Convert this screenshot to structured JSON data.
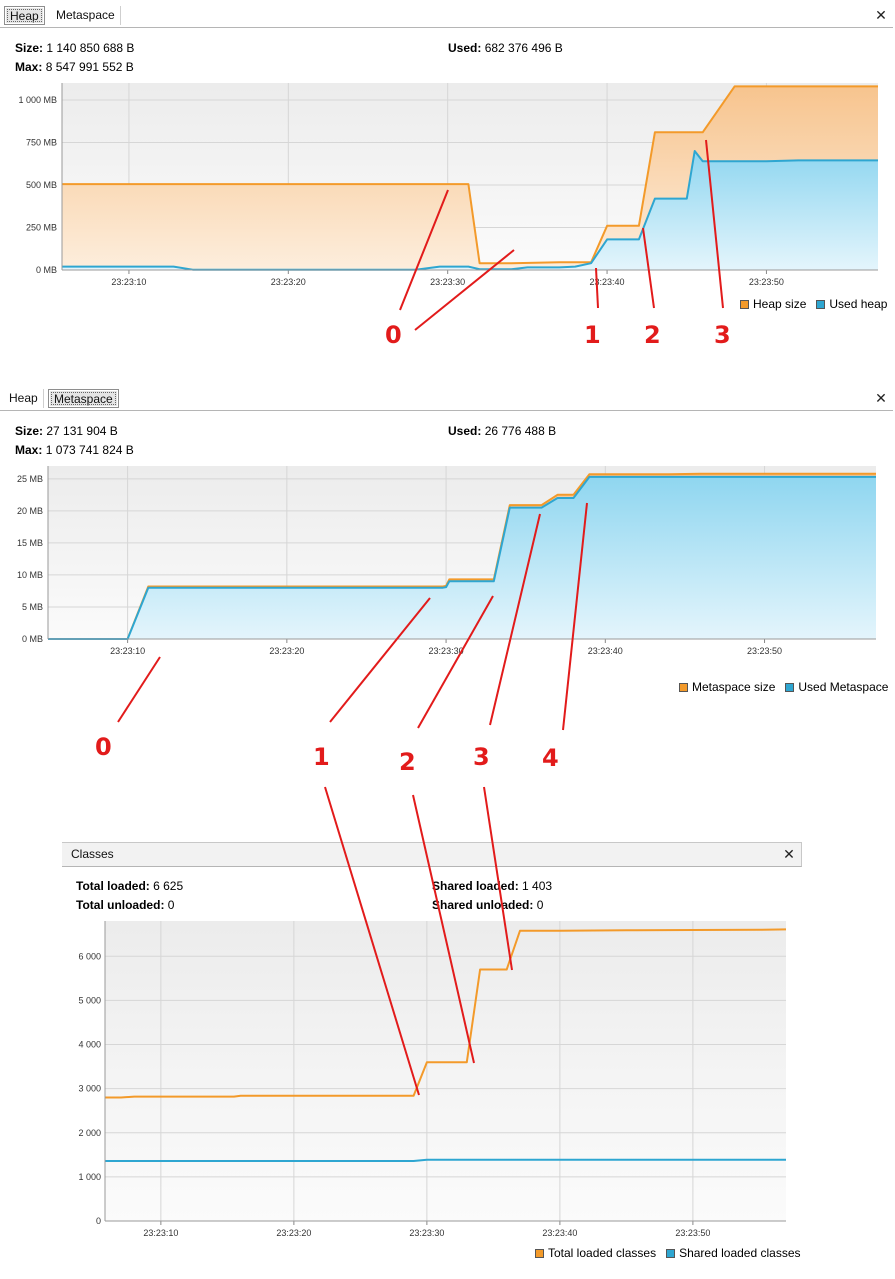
{
  "heap_panel": {
    "tabs": [
      {
        "label": "Heap",
        "active": true
      },
      {
        "label": "Metaspace",
        "active": false
      }
    ],
    "close_glyph": "✕",
    "stats": {
      "size_label": "Size:",
      "size_value": "1 140 850 688 B",
      "max_label": "Max:",
      "max_value": "8 547 991 552 B",
      "used_label": "Used:",
      "used_value": "682 376 496 B"
    },
    "legend": [
      {
        "label": "Heap size",
        "color": "#f39a2a"
      },
      {
        "label": "Used heap",
        "color": "#2ea6d1"
      }
    ]
  },
  "metaspace_panel": {
    "tabs": [
      {
        "label": "Heap",
        "active": false
      },
      {
        "label": "Metaspace",
        "active": true
      }
    ],
    "close_glyph": "✕",
    "stats": {
      "size_label": "Size:",
      "size_value": "27 131 904 B",
      "max_label": "Max:",
      "max_value": "1 073 741 824 B",
      "used_label": "Used:",
      "used_value": "26 776 488 B"
    },
    "legend": [
      {
        "label": "Metaspace size",
        "color": "#f39a2a"
      },
      {
        "label": "Used Metaspace",
        "color": "#2ea6d1"
      }
    ]
  },
  "classes_panel": {
    "tabs": [
      {
        "label": "Classes",
        "active": false
      }
    ],
    "close_glyph": "✕",
    "stats": {
      "total_loaded_label": "Total loaded:",
      "total_loaded_value": "6 625",
      "total_unloaded_label": "Total unloaded:",
      "total_unloaded_value": "0",
      "shared_loaded_label": "Shared loaded:",
      "shared_loaded_value": "1 403",
      "shared_unloaded_label": "Shared unloaded:",
      "shared_unloaded_value": "0"
    },
    "legend": [
      {
        "label": "Total loaded classes",
        "color": "#f39a2a"
      },
      {
        "label": "Shared loaded classes",
        "color": "#2ea6d1"
      }
    ]
  },
  "annotation_color": "#e21b1b",
  "annotations": {
    "heap": [
      "0",
      "1",
      "2",
      "3"
    ],
    "metaspace": [
      "0",
      "1",
      "2",
      "3",
      "4"
    ]
  },
  "chart_data": [
    {
      "type": "area",
      "x_ticks": [
        "23:23:10",
        "23:23:20",
        "23:23:30",
        "23:23:40",
        "23:23:50"
      ],
      "y_ticks": [
        "0 MB",
        "250 MB",
        "500 MB",
        "750 MB",
        "1 000 MB"
      ],
      "ylim": [
        0,
        1100
      ],
      "grid": true,
      "legend_position": "bottom-right",
      "series": [
        {
          "name": "Heap size",
          "color": "#f39a2a",
          "x": [
            5.8,
            8,
            10,
            15,
            20,
            25,
            28,
            29.5,
            31.3,
            32,
            34,
            37,
            38,
            39,
            40,
            41,
            42,
            43,
            44,
            45,
            46,
            48,
            50,
            52,
            54,
            56,
            57
          ],
          "values": [
            505,
            505,
            505,
            505,
            505,
            505,
            505,
            505,
            505,
            40,
            40,
            45,
            45,
            45,
            260,
            260,
            260,
            810,
            810,
            810,
            810,
            1080,
            1080,
            1080,
            1080,
            1080,
            1080
          ]
        },
        {
          "name": "Used heap",
          "color": "#2ea6d1",
          "x": [
            5.8,
            8,
            12.8,
            14,
            28,
            29.5,
            31.3,
            32,
            34,
            35,
            37,
            38,
            39,
            40,
            41,
            42,
            43,
            44,
            45,
            45.5,
            46,
            48,
            50,
            52,
            54,
            56,
            57
          ],
          "values": [
            20,
            20,
            20,
            2,
            2,
            20,
            20,
            5,
            5,
            15,
            15,
            20,
            40,
            180,
            180,
            180,
            420,
            420,
            420,
            700,
            640,
            640,
            640,
            645,
            645,
            645,
            645
          ]
        }
      ]
    },
    {
      "type": "area",
      "x_ticks": [
        "23:23:10",
        "23:23:20",
        "23:23:30",
        "23:23:40",
        "23:23:50"
      ],
      "y_ticks": [
        "0 MB",
        "5 MB",
        "10 MB",
        "15 MB",
        "20 MB",
        "25 MB"
      ],
      "ylim": [
        0,
        27
      ],
      "grid": true,
      "legend_position": "bottom-right",
      "series": [
        {
          "name": "Metaspace size",
          "color": "#f39a2a",
          "x": [
            5,
            7.6,
            10,
            11.3,
            15,
            20,
            25,
            29.8,
            30,
            30.2,
            31,
            33,
            34,
            35,
            36,
            37,
            38,
            39,
            40,
            42,
            44,
            46,
            48,
            50,
            52,
            54,
            56,
            57
          ],
          "values": [
            0,
            0,
            0,
            8.2,
            8.2,
            8.2,
            8.2,
            8.2,
            8.3,
            9.3,
            9.3,
            9.3,
            20.9,
            20.9,
            20.9,
            22.5,
            22.5,
            25.7,
            25.7,
            25.7,
            25.7,
            25.8,
            25.8,
            25.8,
            25.8,
            25.8,
            25.8,
            25.8
          ]
        },
        {
          "name": "Used Metaspace",
          "color": "#2ea6d1",
          "x": [
            5,
            7.6,
            10,
            11.3,
            15,
            20,
            25,
            29.8,
            30,
            30.2,
            31,
            33,
            34,
            35,
            36,
            37,
            38,
            39,
            40,
            42,
            44,
            46,
            48,
            50,
            52,
            54,
            56,
            57
          ],
          "values": [
            0,
            0,
            0,
            8,
            8,
            8,
            8,
            8,
            8.1,
            9,
            9,
            9,
            20.5,
            20.5,
            20.5,
            22,
            22,
            25.3,
            25.3,
            25.3,
            25.3,
            25.3,
            25.3,
            25.3,
            25.3,
            25.3,
            25.3,
            25.3
          ]
        }
      ]
    },
    {
      "type": "line",
      "x_ticks": [
        "23:23:10",
        "23:23:20",
        "23:23:30",
        "23:23:40",
        "23:23:50"
      ],
      "y_ticks": [
        "0",
        "1 000",
        "2 000",
        "3 000",
        "4 000",
        "5 000",
        "6 000"
      ],
      "ylim": [
        0,
        6800
      ],
      "grid": true,
      "legend_position": "bottom-right",
      "series": [
        {
          "name": "Total loaded classes",
          "color": "#f39a2a",
          "x": [
            5.8,
            7,
            8,
            15.5,
            16,
            28.7,
            29,
            30,
            33,
            34,
            36,
            37,
            40,
            45,
            50,
            55,
            57
          ],
          "values": [
            2800,
            2800,
            2820,
            2820,
            2840,
            2840,
            2840,
            3600,
            3600,
            5700,
            5700,
            6580,
            6580,
            6590,
            6595,
            6600,
            6610
          ]
        },
        {
          "name": "Shared loaded classes",
          "color": "#2ea6d1",
          "x": [
            5.8,
            10,
            20,
            29,
            30,
            35,
            40,
            50,
            57
          ],
          "values": [
            1360,
            1360,
            1360,
            1360,
            1390,
            1390,
            1390,
            1390,
            1390
          ]
        }
      ]
    }
  ]
}
